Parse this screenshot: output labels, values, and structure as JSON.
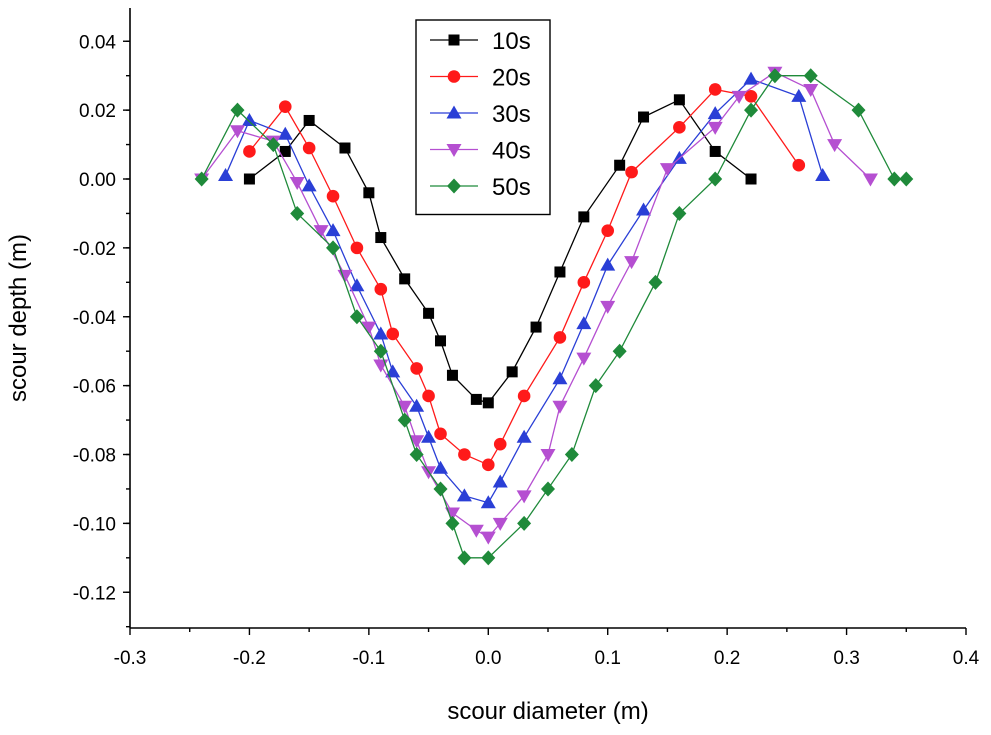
{
  "chart_data": {
    "type": "line",
    "title": "",
    "xlabel": "scour diameter (m)",
    "ylabel": "scour depth (m)",
    "xlim": [
      -0.3,
      0.4
    ],
    "ylim": [
      -0.13,
      0.05
    ],
    "x_ticks": [
      -0.3,
      -0.2,
      -0.1,
      0.0,
      0.1,
      0.2,
      0.3,
      0.4
    ],
    "x_tick_labels": [
      "-0.3",
      "-0.2",
      "-0.1",
      "0.0",
      "0.1",
      "0.2",
      "0.3",
      "0.4"
    ],
    "y_ticks": [
      0.04,
      0.02,
      0.0,
      -0.02,
      -0.04,
      -0.06,
      -0.08,
      -0.1,
      -0.12
    ],
    "y_tick_labels": [
      "0.04",
      "0.02",
      "0.00",
      "-0.02",
      "-0.04",
      "-0.06",
      "-0.08",
      "-0.10",
      "-0.12"
    ],
    "grid": false,
    "legend_position": "top-center",
    "series": [
      {
        "name": "10s",
        "color": "#000000",
        "marker": "square",
        "x": [
          -0.2,
          -0.17,
          -0.15,
          -0.12,
          -0.1,
          -0.09,
          -0.07,
          -0.05,
          -0.04,
          -0.03,
          -0.01,
          0.0,
          0.02,
          0.04,
          0.06,
          0.08,
          0.11,
          0.13,
          0.16,
          0.19,
          0.22
        ],
        "y": [
          0.0,
          0.008,
          0.017,
          0.009,
          -0.004,
          -0.017,
          -0.029,
          -0.039,
          -0.047,
          -0.057,
          -0.064,
          -0.065,
          -0.056,
          -0.043,
          -0.027,
          -0.011,
          0.004,
          0.018,
          0.023,
          0.008,
          0.0
        ]
      },
      {
        "name": "20s",
        "color": "#ff1a1a",
        "marker": "circle",
        "x": [
          -0.2,
          -0.17,
          -0.15,
          -0.13,
          -0.11,
          -0.09,
          -0.08,
          -0.06,
          -0.05,
          -0.04,
          -0.02,
          0.0,
          0.01,
          0.03,
          0.06,
          0.08,
          0.1,
          0.12,
          0.16,
          0.19,
          0.22,
          0.26
        ],
        "y": [
          0.008,
          0.021,
          0.009,
          -0.005,
          -0.02,
          -0.032,
          -0.045,
          -0.055,
          -0.063,
          -0.074,
          -0.08,
          -0.083,
          -0.077,
          -0.063,
          -0.046,
          -0.03,
          -0.015,
          0.002,
          0.015,
          0.026,
          0.024,
          0.004
        ]
      },
      {
        "name": "30s",
        "color": "#2a3fd6",
        "marker": "triangle-up",
        "x": [
          -0.22,
          -0.2,
          -0.17,
          -0.15,
          -0.13,
          -0.11,
          -0.09,
          -0.08,
          -0.06,
          -0.05,
          -0.04,
          -0.02,
          0.0,
          0.01,
          0.03,
          0.06,
          0.08,
          0.1,
          0.13,
          0.16,
          0.19,
          0.22,
          0.26,
          0.28
        ],
        "y": [
          0.001,
          0.017,
          0.013,
          -0.002,
          -0.015,
          -0.031,
          -0.045,
          -0.056,
          -0.066,
          -0.075,
          -0.084,
          -0.092,
          -0.094,
          -0.088,
          -0.075,
          -0.058,
          -0.042,
          -0.025,
          -0.009,
          0.006,
          0.019,
          0.029,
          0.024,
          0.001
        ]
      },
      {
        "name": "40s",
        "color": "#b54fd1",
        "marker": "triangle-down",
        "x": [
          -0.24,
          -0.21,
          -0.18,
          -0.16,
          -0.14,
          -0.12,
          -0.1,
          -0.09,
          -0.07,
          -0.06,
          -0.05,
          -0.03,
          -0.01,
          0.0,
          0.01,
          0.03,
          0.05,
          0.06,
          0.08,
          0.1,
          0.12,
          0.15,
          0.19,
          0.21,
          0.24,
          0.27,
          0.29,
          0.32
        ],
        "y": [
          0.0,
          0.014,
          0.011,
          -0.001,
          -0.015,
          -0.028,
          -0.043,
          -0.054,
          -0.066,
          -0.076,
          -0.085,
          -0.097,
          -0.102,
          -0.104,
          -0.1,
          -0.092,
          -0.08,
          -0.066,
          -0.052,
          -0.037,
          -0.024,
          0.003,
          0.015,
          0.024,
          0.031,
          0.026,
          0.01,
          0.0
        ]
      },
      {
        "name": "50s",
        "color": "#1f8a3a",
        "marker": "diamond",
        "x": [
          -0.24,
          -0.21,
          -0.18,
          -0.16,
          -0.13,
          -0.11,
          -0.09,
          -0.07,
          -0.06,
          -0.04,
          -0.03,
          -0.02,
          0.0,
          0.03,
          0.05,
          0.07,
          0.09,
          0.11,
          0.14,
          0.16,
          0.19,
          0.22,
          0.24,
          0.27,
          0.31,
          0.34,
          0.35
        ],
        "y": [
          0.0,
          0.02,
          0.01,
          -0.01,
          -0.02,
          -0.04,
          -0.05,
          -0.07,
          -0.08,
          -0.09,
          -0.1,
          -0.11,
          -0.11,
          -0.1,
          -0.09,
          -0.08,
          -0.06,
          -0.05,
          -0.03,
          -0.01,
          0.0,
          0.02,
          0.03,
          0.03,
          0.02,
          0.0,
          0.0
        ]
      }
    ]
  }
}
